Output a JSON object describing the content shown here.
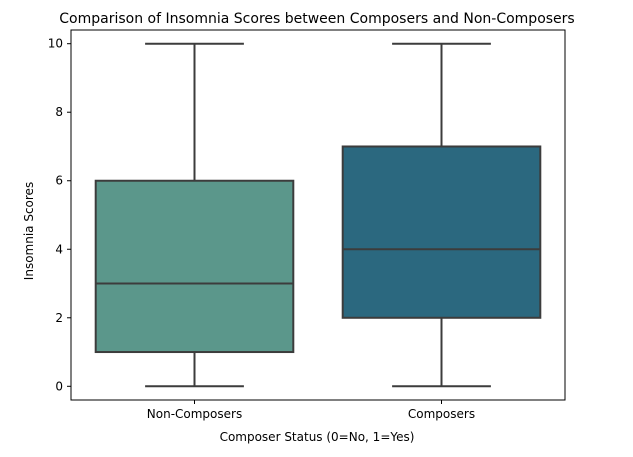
{
  "chart_data": {
    "type": "box",
    "title": "Comparison of Insomnia Scores between Composers and Non-Composers",
    "xlabel": "Composer Status (0=No, 1=Yes)",
    "ylabel": "Insomnia Scores",
    "categories": [
      "Non-Composers",
      "Composers"
    ],
    "ylim": [
      -0.4,
      10.4
    ],
    "yticks": [
      0,
      2,
      4,
      6,
      8,
      10
    ],
    "grid": false,
    "boxes": [
      {
        "category": "Non-Composers",
        "min": 0,
        "q1": 1,
        "median": 3,
        "q3": 6,
        "max": 10,
        "color": "#5b978b"
      },
      {
        "category": "Composers",
        "min": 0,
        "q1": 2,
        "median": 4,
        "q3": 7,
        "max": 10,
        "color": "#2b687f"
      }
    ]
  }
}
